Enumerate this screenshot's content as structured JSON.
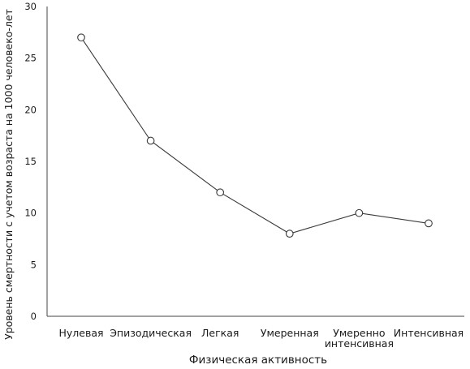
{
  "chart_data": {
    "type": "line",
    "title": "",
    "xlabel": "Физическая активность",
    "ylabel": "Уровень смертности с учетом возраста на 1000 человеко-лет",
    "categories": [
      [
        "Нулевая"
      ],
      [
        "Эпизодическая"
      ],
      [
        "Легкая"
      ],
      [
        "Умеренная"
      ],
      [
        "Умеренно",
        "интенсивная"
      ],
      [
        "Интенсивная"
      ]
    ],
    "series": [
      {
        "values": [
          27,
          17,
          12,
          8,
          10,
          9
        ]
      }
    ],
    "ylim": [
      0,
      30
    ],
    "yticks": [
      0,
      5,
      10,
      15,
      20,
      25,
      30
    ],
    "grid": false,
    "legend": "none",
    "colors": {
      "line": "#3a3a3a",
      "marker_fill": "#ffffff",
      "axis": "#444444"
    }
  }
}
